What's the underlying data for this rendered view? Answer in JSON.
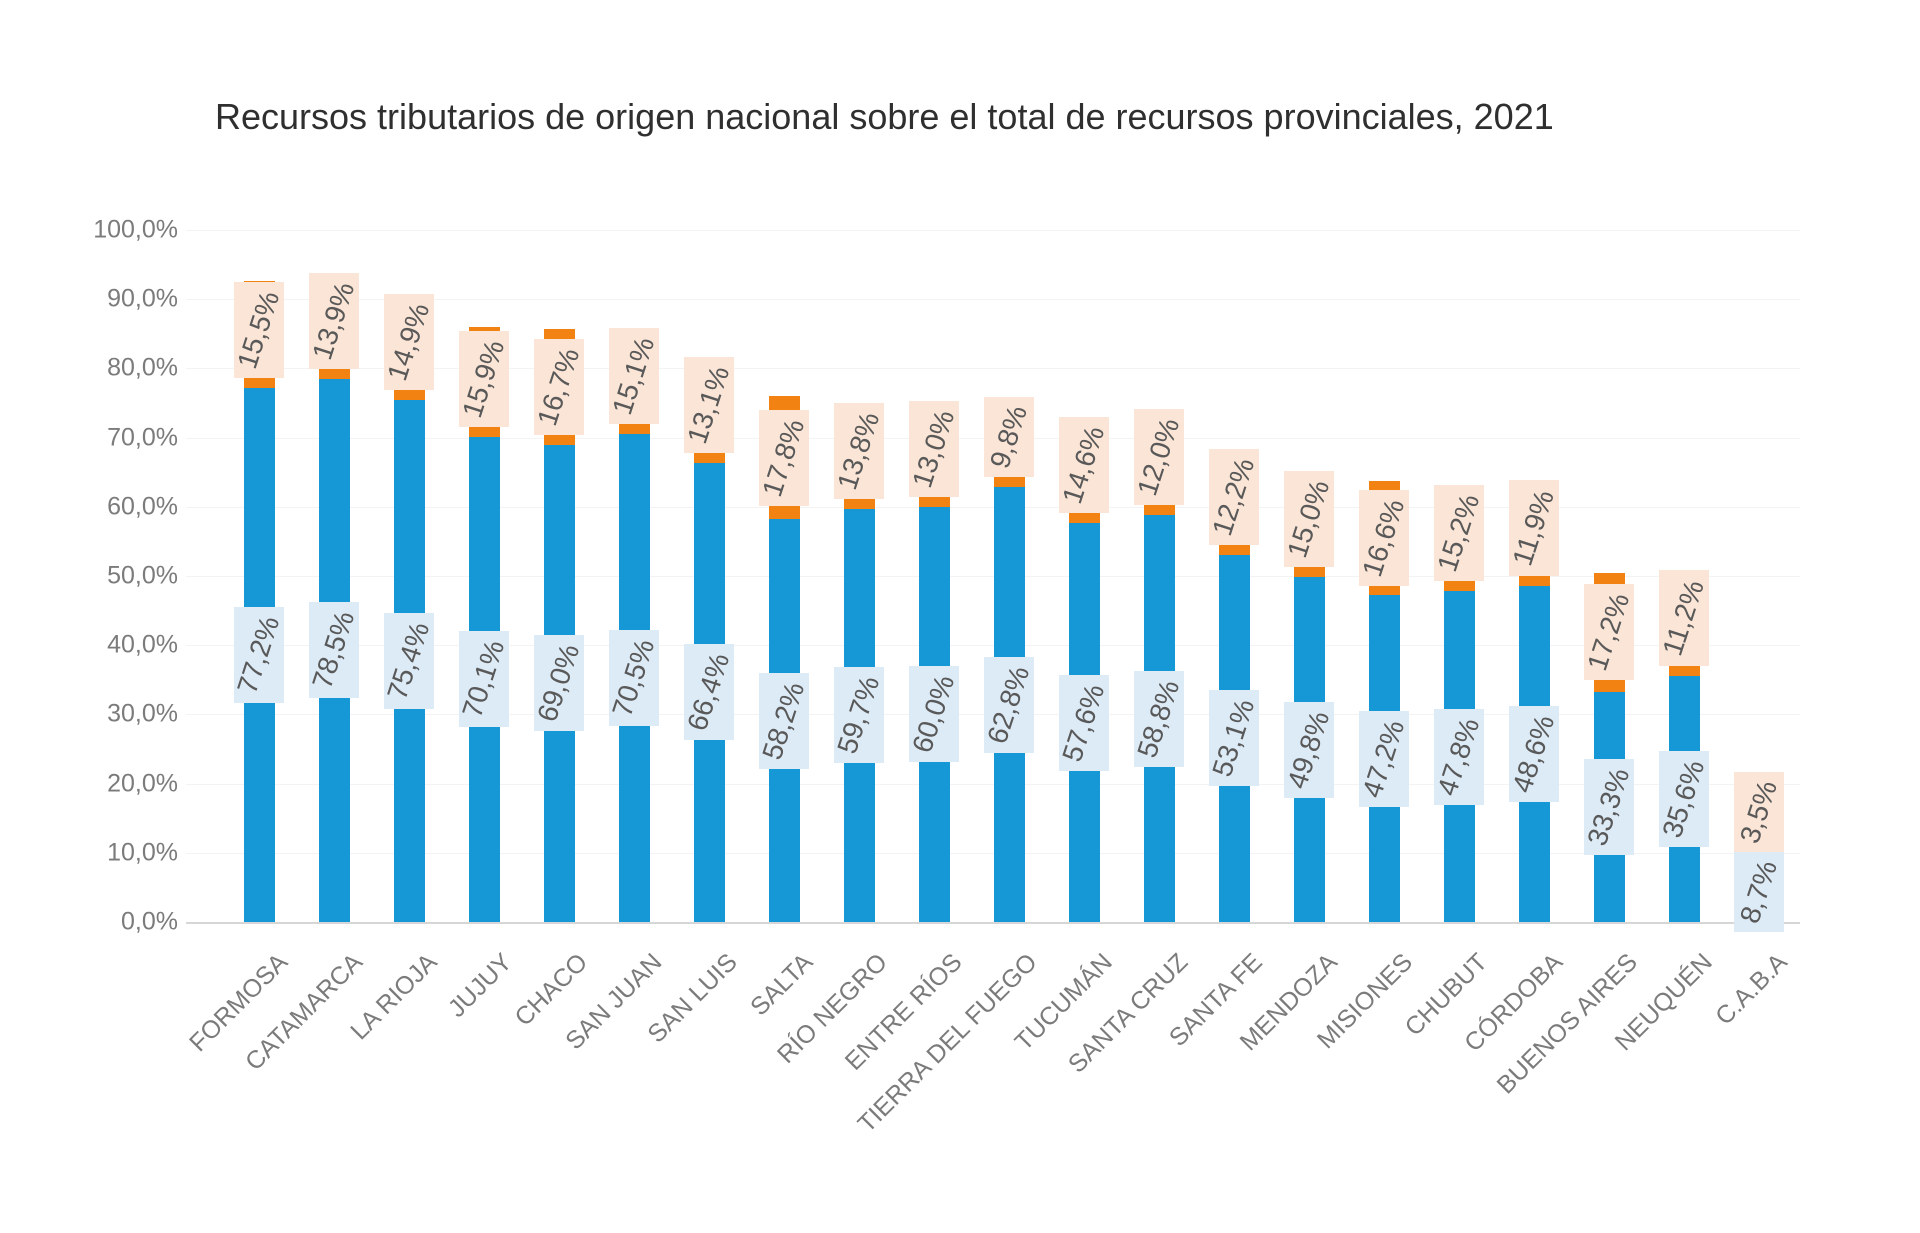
{
  "title": "Recursos tributarios de origen nacional sobre el total de recursos provinciales, 2021",
  "colors": {
    "blue_bar": "#1697d6",
    "orange_bar": "#f28211",
    "blue_label_bg": "#ddebf7",
    "orange_label_bg": "#fbe5d6",
    "label_text": "#595959",
    "axis_text": "#7b7b7b",
    "title_text": "#2f2f2f"
  },
  "chart_data": {
    "type": "bar",
    "stacked": true,
    "grid": true,
    "legend": "none",
    "ylim": [
      0,
      100
    ],
    "ytick_step": 10,
    "ytick_suffix": "%",
    "decimal_separator": ",",
    "categories": [
      "FORMOSA",
      "CATAMARCA",
      "LA RIOJA",
      "JUJUY",
      "CHACO",
      "SAN JUAN",
      "SAN LUIS",
      "SALTA",
      "RÍO NEGRO",
      "ENTRE RÍOS",
      "TIERRA DEL FUEGO",
      "TUCUMÁN",
      "SANTA CRUZ",
      "SANTA FE",
      "MENDOZA",
      "MISIONES",
      "CHUBUT",
      "CÓRDOBA",
      "BUENOS AIRES",
      "NEUQUÉN",
      "C.A.B.A"
    ],
    "series": [
      {
        "name": "recursos-origen-nacional",
        "color": "#1697d6",
        "label_background": "#ddebf7",
        "values": [
          77.2,
          78.5,
          75.4,
          70.1,
          69.0,
          70.5,
          66.4,
          58.2,
          59.7,
          60.0,
          62.8,
          57.6,
          58.8,
          53.1,
          49.8,
          47.2,
          47.8,
          48.6,
          33.3,
          35.6,
          8.7
        ]
      },
      {
        "name": "segundo-segmento",
        "color": "#f28211",
        "label_background": "#fbe5d6",
        "values": [
          15.5,
          13.9,
          14.9,
          15.9,
          16.7,
          15.1,
          13.1,
          17.8,
          13.8,
          13.0,
          9.8,
          14.6,
          12.0,
          12.2,
          15.0,
          16.6,
          15.2,
          11.9,
          17.2,
          11.2,
          3.5
        ]
      }
    ],
    "data_labels": {
      "series_0": [
        "77,2%",
        "78,5%",
        "75,4%",
        "70,1%",
        "69,0%",
        "70,5%",
        "66,4%",
        "58,2%",
        "59,7%",
        "60,0%",
        "62,8%",
        "57,6%",
        "58,8%",
        "53,1%",
        "49,8%",
        "47,2%",
        "47,8%",
        "48,6%",
        "33,3%",
        "35,6%",
        "8,7%"
      ],
      "series_1": [
        "15,5%",
        "13,9%",
        "14,9%",
        "15,9%",
        "16,7%",
        "15,1%",
        "13,1%",
        "17,8%",
        "13,8%",
        "13,0%",
        "9,8%",
        "14,6%",
        "12,0%",
        "12,2%",
        "15,0%",
        "16,6%",
        "15,2%",
        "11,9%",
        "17,2%",
        "11,2%",
        "3,5%"
      ]
    },
    "ytick_labels": [
      "100,0%",
      "90,0%",
      "80,0%",
      "70,0%",
      "60,0%",
      "50,0%",
      "40,0%",
      "30,0%",
      "20,0%",
      "10,0%",
      "0,0%"
    ]
  }
}
